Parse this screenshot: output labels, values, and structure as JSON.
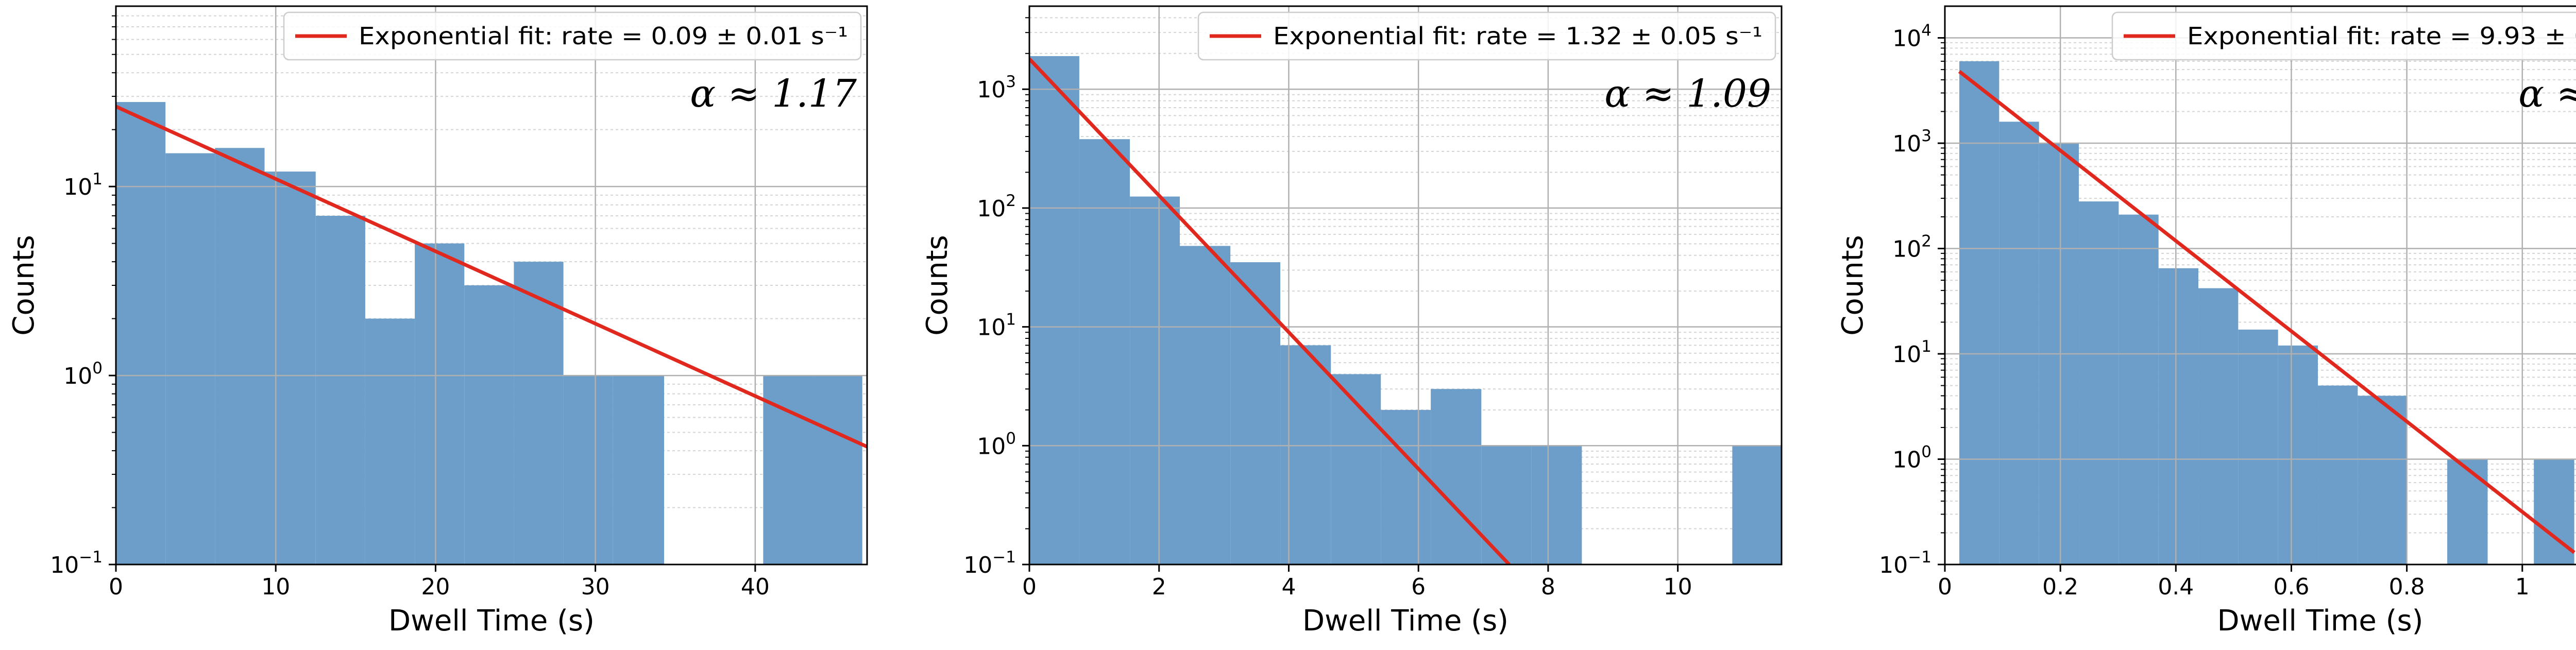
{
  "chart_data": [
    {
      "type": "bar",
      "xlabel": "Dwell Time (s)",
      "ylabel": "Counts",
      "yscale": "log",
      "xlim": [
        0,
        47
      ],
      "ylim": [
        0.1,
        90
      ],
      "xticks": [
        0,
        10,
        20,
        30,
        40
      ],
      "yticks": [
        0.1,
        1,
        10
      ],
      "grid": true,
      "legend_position": "top-right",
      "annotation": "α ≈ 1.17",
      "bar_color": "#6c9ec9",
      "fit_color": "#e0281e",
      "bins": [
        {
          "x0": 0.0,
          "x1": 3.1,
          "count": 28
        },
        {
          "x0": 3.1,
          "x1": 6.2,
          "count": 15
        },
        {
          "x0": 6.2,
          "x1": 9.3,
          "count": 16
        },
        {
          "x0": 9.3,
          "x1": 12.5,
          "count": 12
        },
        {
          "x0": 12.5,
          "x1": 15.6,
          "count": 7
        },
        {
          "x0": 15.6,
          "x1": 18.7,
          "count": 2
        },
        {
          "x0": 18.7,
          "x1": 21.8,
          "count": 5
        },
        {
          "x0": 21.8,
          "x1": 24.9,
          "count": 3
        },
        {
          "x0": 24.9,
          "x1": 28.0,
          "count": 4
        },
        {
          "x0": 28.0,
          "x1": 31.1,
          "count": 1
        },
        {
          "x0": 31.1,
          "x1": 34.3,
          "count": 1
        },
        {
          "x0": 40.5,
          "x1": 43.6,
          "count": 1
        },
        {
          "x0": 43.6,
          "x1": 46.7,
          "count": 1
        }
      ],
      "series": [
        {
          "name": "Exponential fit: rate = 0.09 ± 0.01 s⁻¹",
          "x": [
            0,
            47
          ],
          "y": [
            26.5,
            0.42
          ]
        }
      ]
    },
    {
      "type": "bar",
      "xlabel": "Dwell Time (s)",
      "ylabel": "Counts",
      "yscale": "log",
      "xlim": [
        0,
        11.6
      ],
      "ylim": [
        0.1,
        5000
      ],
      "xticks": [
        0,
        2,
        4,
        6,
        8,
        10
      ],
      "yticks": [
        0.1,
        1,
        10,
        100,
        1000
      ],
      "grid": true,
      "legend_position": "top-right",
      "annotation": "α ≈ 1.09",
      "bar_color": "#6c9ec9",
      "fit_color": "#e0281e",
      "bins": [
        {
          "x0": 0.0,
          "x1": 0.77,
          "count": 1900
        },
        {
          "x0": 0.77,
          "x1": 1.55,
          "count": 380
        },
        {
          "x0": 1.55,
          "x1": 2.32,
          "count": 125
        },
        {
          "x0": 2.32,
          "x1": 3.1,
          "count": 48
        },
        {
          "x0": 3.1,
          "x1": 3.87,
          "count": 35
        },
        {
          "x0": 3.87,
          "x1": 4.65,
          "count": 7
        },
        {
          "x0": 4.65,
          "x1": 5.42,
          "count": 4
        },
        {
          "x0": 5.42,
          "x1": 6.19,
          "count": 2
        },
        {
          "x0": 6.19,
          "x1": 6.97,
          "count": 3
        },
        {
          "x0": 6.97,
          "x1": 7.74,
          "count": 1
        },
        {
          "x0": 7.74,
          "x1": 8.52,
          "count": 1
        },
        {
          "x0": 10.84,
          "x1": 11.61,
          "count": 1
        }
      ],
      "series": [
        {
          "name": "Exponential fit: rate = 1.32 ± 0.05 s⁻¹",
          "x": [
            0,
            7.4
          ],
          "y": [
            1800,
            0.1
          ]
        }
      ]
    },
    {
      "type": "bar",
      "xlabel": "Dwell Time (s)",
      "ylabel": "Counts",
      "yscale": "log",
      "xlim": [
        0,
        1.3
      ],
      "ylim": [
        0.1,
        20000
      ],
      "xticks": [
        0.0,
        0.2,
        0.4,
        0.6,
        0.8,
        1.0,
        1.2
      ],
      "yticks": [
        0.1,
        1,
        10,
        100,
        1000,
        10000
      ],
      "grid": true,
      "legend_position": "top-right",
      "annotation": "α ≈ 1.06",
      "bar_color": "#6c9ec9",
      "fit_color": "#e0281e",
      "bins": [
        {
          "x0": 0.025,
          "x1": 0.094,
          "count": 6000
        },
        {
          "x0": 0.094,
          "x1": 0.163,
          "count": 1600
        },
        {
          "x0": 0.163,
          "x1": 0.232,
          "count": 1000
        },
        {
          "x0": 0.232,
          "x1": 0.301,
          "count": 280
        },
        {
          "x0": 0.301,
          "x1": 0.37,
          "count": 210
        },
        {
          "x0": 0.37,
          "x1": 0.439,
          "count": 65
        },
        {
          "x0": 0.439,
          "x1": 0.508,
          "count": 42
        },
        {
          "x0": 0.508,
          "x1": 0.577,
          "count": 17
        },
        {
          "x0": 0.577,
          "x1": 0.646,
          "count": 12
        },
        {
          "x0": 0.646,
          "x1": 0.715,
          "count": 5
        },
        {
          "x0": 0.715,
          "x1": 0.8,
          "count": 4
        },
        {
          "x0": 0.87,
          "x1": 0.94,
          "count": 1
        },
        {
          "x0": 1.02,
          "x1": 1.09,
          "count": 1
        }
      ],
      "series": [
        {
          "name": "Exponential fit: rate = 9.93 ± 0.76 s⁻¹",
          "x": [
            0.025,
            1.09
          ],
          "y": [
            4800,
            0.13
          ]
        }
      ]
    }
  ]
}
